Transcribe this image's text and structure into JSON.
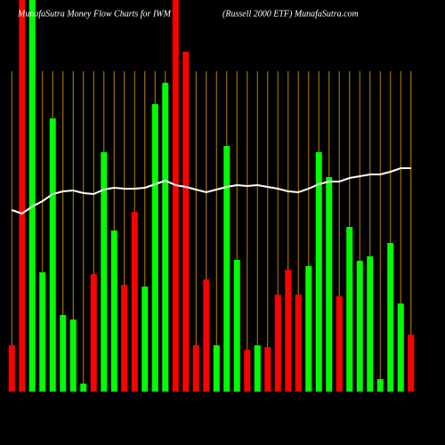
{
  "chart_data": {
    "type": "bar",
    "title": "MunafaSutra  Money Flow  Charts for IWM",
    "subtitle": "(Russell 2000  ETF) MunafaSutra.com",
    "categories": [
      null,
      null,
      null,
      null,
      null,
      null,
      null,
      null,
      null,
      null,
      null,
      null,
      null,
      null,
      null,
      null,
      null,
      null,
      null,
      null,
      null,
      null,
      null,
      null,
      null,
      null,
      null,
      null,
      null,
      null,
      null,
      null,
      null,
      null,
      null,
      null,
      null,
      null,
      null,
      null
    ],
    "values": [
      52,
      440,
      440,
      134,
      307,
      86,
      81,
      9,
      132,
      269,
      181,
      120,
      202,
      118,
      323,
      347,
      440,
      382,
      52,
      126,
      52,
      276,
      148,
      47,
      52,
      50,
      109,
      137,
      109,
      141,
      269,
      241,
      107,
      185,
      147,
      152,
      14,
      167,
      99,
      64
    ],
    "bar_colors": [
      "#ff0000",
      "#ff0000",
      "#00ff00",
      "#00ff00",
      "#00ff00",
      "#00ff00",
      "#00ff00",
      "#00ff00",
      "#ff0000",
      "#00ff00",
      "#00ff00",
      "#ff0000",
      "#ff0000",
      "#00ff00",
      "#00ff00",
      "#00ff00",
      "#ff0000",
      "#ff0000",
      "#ff0000",
      "#ff0000",
      "#00ff00",
      "#00ff00",
      "#00ff00",
      "#ff0000",
      "#00ff00",
      "#ff0000",
      "#ff0000",
      "#ff0000",
      "#ff0000",
      "#00ff00",
      "#00ff00",
      "#00ff00",
      "#ff0000",
      "#00ff00",
      "#00ff00",
      "#00ff00",
      "#00ff00",
      "#00ff00",
      "#00ff00",
      "#ff0000"
    ],
    "line": {
      "color": "#ffffff",
      "values": [
        204,
        200,
        208,
        214,
        222,
        225,
        226,
        223,
        222,
        227,
        229,
        228,
        228,
        229,
        233,
        237,
        232,
        230,
        227,
        224,
        227,
        230,
        232,
        231,
        232,
        230,
        228,
        225,
        224,
        228,
        233,
        236,
        236,
        240,
        242,
        244,
        244,
        247,
        251,
        251
      ]
    },
    "ylim": [
      0,
      440
    ],
    "grid_color": "#b8860b"
  }
}
